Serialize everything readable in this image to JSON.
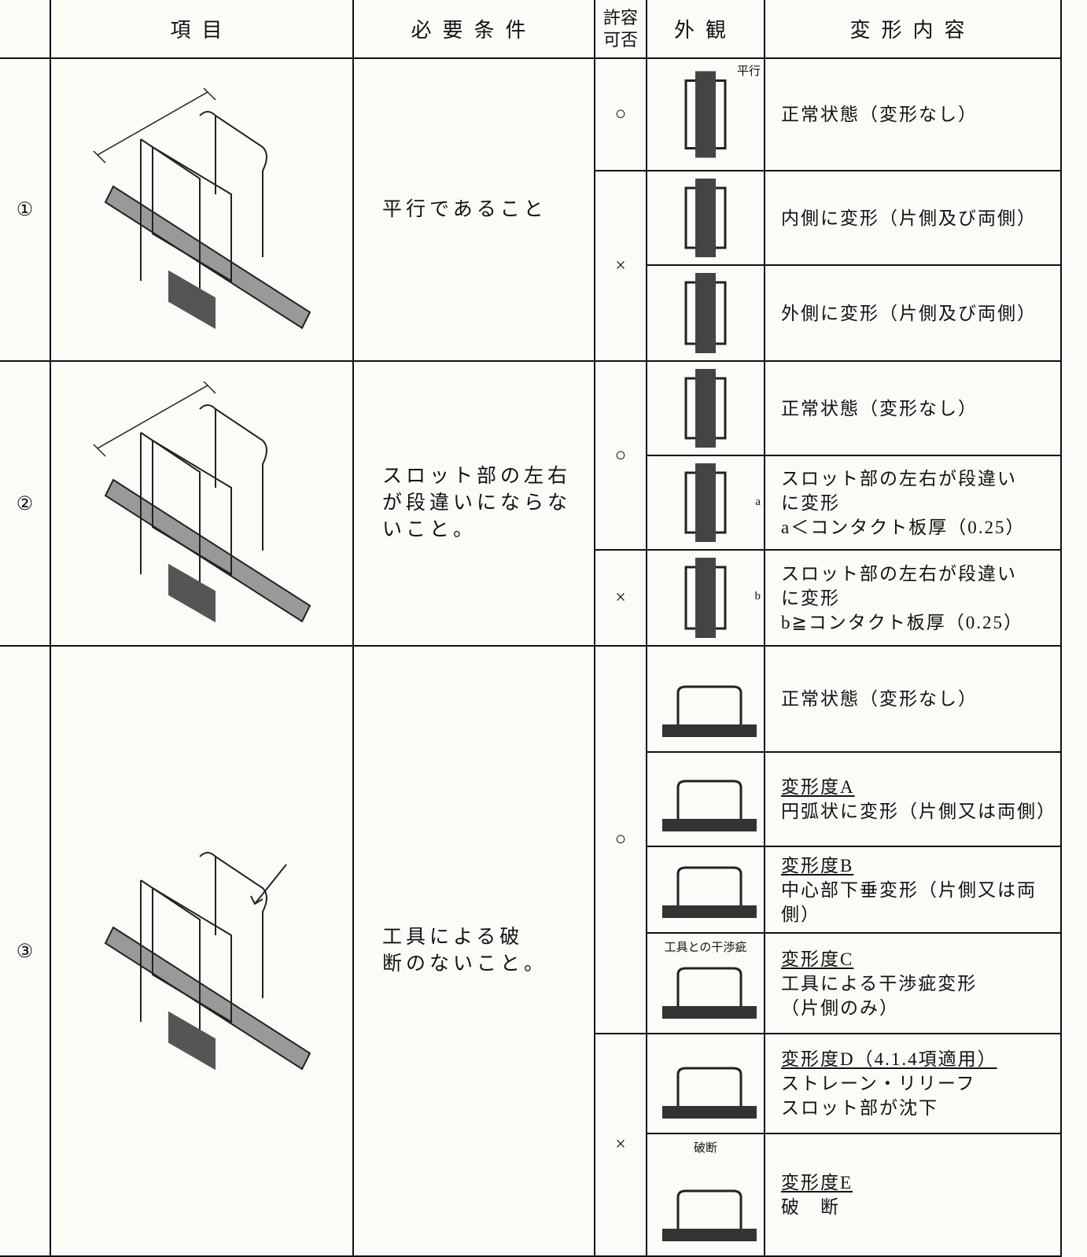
{
  "header": {
    "item": "項目",
    "requirement": "必要条件",
    "acceptance": "許容可否",
    "appearance": "外観",
    "deformation": "変形内容"
  },
  "rows": [
    {
      "number": "①",
      "requirement": [
        "平行であること"
      ],
      "groups": [
        {
          "acceptance": "○",
          "cases": [
            {
              "appearance_note": "平行",
              "lines": [
                "正常状態（変形なし）"
              ]
            }
          ]
        },
        {
          "acceptance": "×",
          "cases": [
            {
              "lines": [
                "内側に変形（片側及び両側）"
              ]
            },
            {
              "lines": [
                "外側に変形（片側及び両側）"
              ]
            }
          ]
        }
      ]
    },
    {
      "number": "②",
      "requirement": [
        "スロット部の左右",
        "が段違いにならな",
        "いこと。"
      ],
      "groups": [
        {
          "acceptance": "○",
          "cases": [
            {
              "lines": [
                "正常状態（変形なし）"
              ]
            },
            {
              "appearance_note": "a",
              "lines": [
                "スロット部の左右が段違い",
                "に変形",
                "a＜コンタクト板厚（0.25）"
              ]
            }
          ]
        },
        {
          "acceptance": "×",
          "cases": [
            {
              "appearance_note": "b",
              "lines": [
                "スロット部の左右が段違い",
                "に変形",
                "b≧コンタクト板厚（0.25）"
              ]
            }
          ]
        }
      ]
    },
    {
      "number": "③",
      "requirement": [
        "工具による破",
        "断のないこと。"
      ],
      "groups": [
        {
          "acceptance": "○",
          "cases": [
            {
              "lines": [
                "正常状態（変形なし）"
              ]
            },
            {
              "title": "変形度A",
              "lines": [
                "円弧状に変形（片側又は両側）"
              ]
            },
            {
              "title": "変形度B",
              "lines": [
                "中心部下垂変形（片側又は両側）"
              ]
            },
            {
              "appearance_note": "工具との干渉疵",
              "title": "変形度C",
              "lines": [
                "工具による干渉疵変形",
                "（片側のみ）"
              ]
            }
          ]
        },
        {
          "acceptance": "×",
          "cases": [
            {
              "title": "変形度D（4.1.4項適用）",
              "lines": [
                "ストレーン・リリーフ",
                "スロット部が沈下"
              ]
            },
            {
              "appearance_note": "破断",
              "title": "変形度E",
              "lines": [
                "破　断"
              ]
            }
          ]
        }
      ]
    }
  ]
}
